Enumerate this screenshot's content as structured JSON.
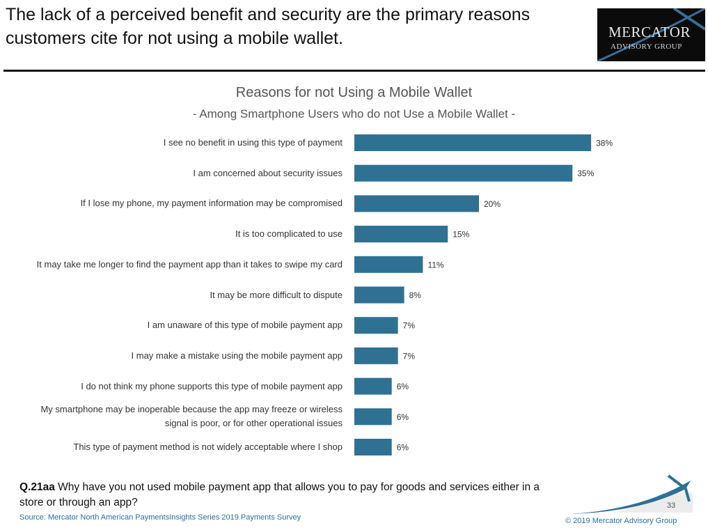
{
  "headline": "The lack of a perceived benefit and security are the primary reasons customers cite for not using a mobile wallet.",
  "logo": {
    "line1": "Mercator",
    "line2": "Advisory Group"
  },
  "chart_data": {
    "type": "bar",
    "orientation": "horizontal",
    "title": "Reasons for not Using a Mobile Wallet",
    "subtitle": "- Among Smartphone Users who do not Use a Mobile Wallet -",
    "categories": [
      "I see no benefit in using this type of payment",
      "I am concerned about security issues",
      "If I lose my phone, my payment information may be compromised",
      "It is too complicated to use",
      "It may take me longer to find the payment app than it takes to swipe my card",
      "It may be more difficult to dispute",
      "I am unaware of this type of mobile payment app",
      "I may make a mistake using the mobile payment app",
      "I do not think my phone supports this type of mobile payment app",
      "My smartphone may be inoperable because the app may freeze or wireless signal is poor, or for other operational issues",
      "This type of payment method is not widely acceptable where I shop"
    ],
    "values": [
      38,
      35,
      20,
      15,
      11,
      8,
      7,
      7,
      6,
      6,
      6
    ],
    "data_labels": [
      "38%",
      "35%",
      "20%",
      "15%",
      "11%",
      "8%",
      "7%",
      "7%",
      "6%",
      "6%",
      "6%"
    ],
    "unit": "%",
    "grid": false,
    "bar_color": "#2e7193"
  },
  "question": {
    "id": "Q.21aa",
    "text": "Why have you not used mobile payment app that allows you to pay for goods and services either in a store or through an app?"
  },
  "source": "Source: Mercator North American PaymentsInsights Series 2019 Payments Survey",
  "page_number": "33",
  "copyright": "© 2019 Mercator Advisory Group"
}
